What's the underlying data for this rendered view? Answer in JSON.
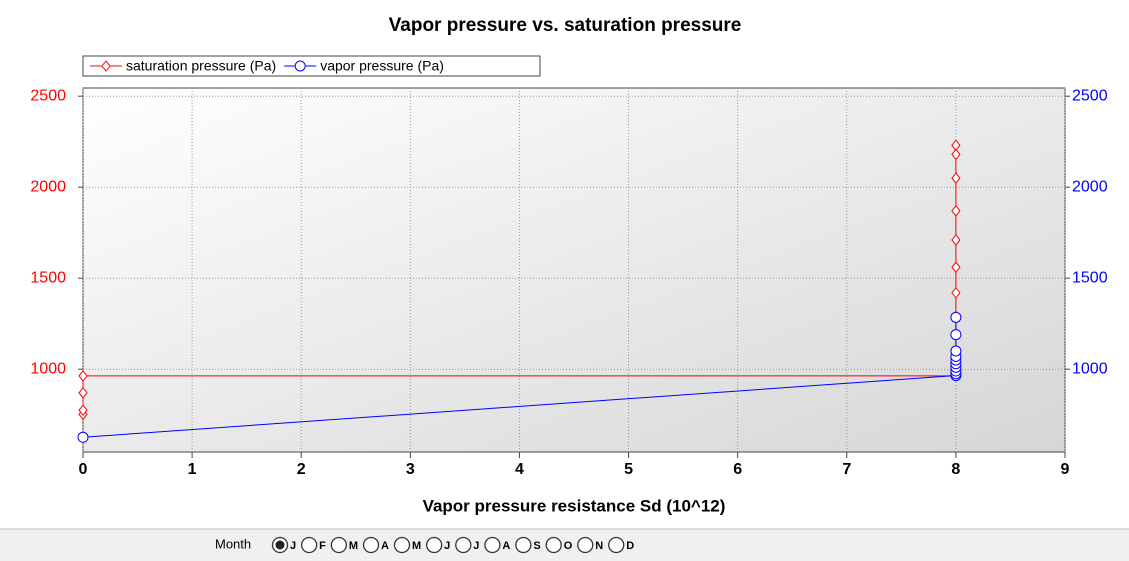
{
  "chart_data": {
    "type": "line",
    "title": "Vapor pressure vs. saturation pressure",
    "xlabel": "Vapor pressure resistance Sd  (10^12)",
    "xlim": [
      0,
      9
    ],
    "xticks": [
      0,
      1,
      2,
      3,
      4,
      5,
      6,
      7,
      8,
      9
    ],
    "ylim": [
      545,
      2545
    ],
    "yticks": [
      1000,
      1500,
      2000,
      2500
    ],
    "y2lim": [
      545,
      2545
    ],
    "y2ticks": [
      1000,
      1500,
      2000,
      2500
    ],
    "grid": true,
    "legend": "top-left",
    "series": [
      {
        "name": "saturation pressure (Pa)",
        "color": "#ff0000",
        "marker": "diamond",
        "x": [
          0,
          0,
          0,
          0,
          8,
          8,
          8,
          8,
          8,
          8,
          8,
          8,
          8,
          8,
          8,
          8,
          8
        ],
        "values": [
          752,
          775,
          870,
          963,
          963,
          1000,
          1050,
          1100,
          1190,
          1290,
          1420,
          1560,
          1710,
          1870,
          2050,
          2180,
          2230
        ]
      },
      {
        "name": "vapor pressure (Pa)",
        "color": "#0000ff",
        "marker": "circle",
        "axis": "y2",
        "x": [
          0,
          8,
          8,
          8,
          8,
          8,
          8,
          8,
          8,
          8,
          8
        ],
        "values": [
          626,
          965,
          975,
          990,
          1010,
          1030,
          1050,
          1070,
          1100,
          1190,
          1285
        ]
      }
    ]
  },
  "month_selector": {
    "label": "Month",
    "options": [
      "J",
      "F",
      "M",
      "A",
      "M",
      "J",
      "J",
      "A",
      "S",
      "O",
      "N",
      "D"
    ],
    "selected": 0
  }
}
